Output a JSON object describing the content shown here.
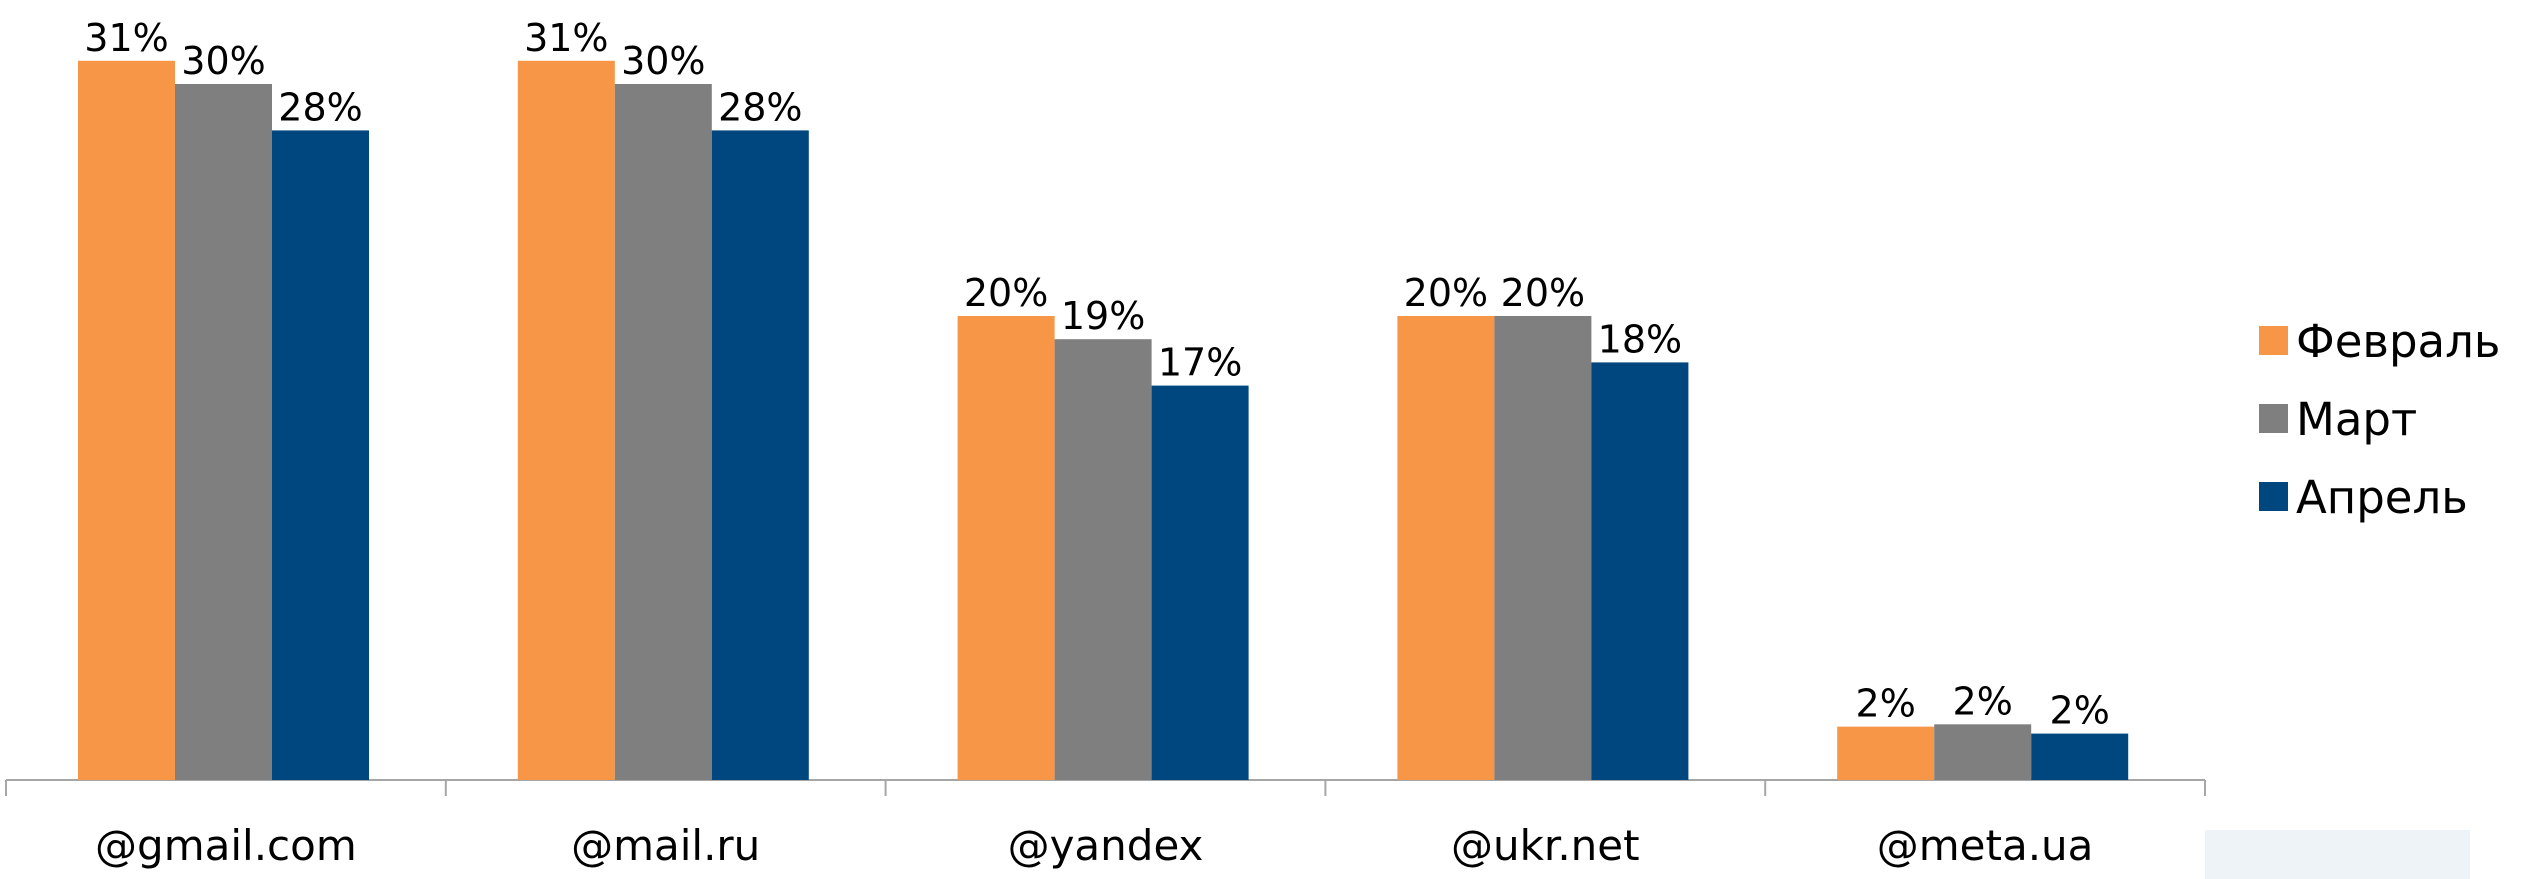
{
  "chart_data": {
    "type": "bar",
    "categories": [
      "@gmail.com",
      "@mail.ru",
      "@yandex",
      "@ukr.net",
      "@meta.ua"
    ],
    "series": [
      {
        "name": "Февраль",
        "color": "#f79646",
        "values": [
          31,
          31,
          20,
          20,
          2.3
        ],
        "value_labels": [
          "31%",
          "31%",
          "20%",
          "20%",
          "2%"
        ]
      },
      {
        "name": "Март",
        "color": "#7f7f7f",
        "values": [
          30,
          30,
          19,
          20,
          2.4
        ],
        "value_labels": [
          "30%",
          "30%",
          "19%",
          "20%",
          "2%"
        ]
      },
      {
        "name": "Апрель",
        "color": "#00467f",
        "values": [
          28,
          28,
          17,
          18,
          2.0
        ],
        "value_labels": [
          "28%",
          "28%",
          "17%",
          "18%",
          "2%"
        ]
      }
    ],
    "legend": "right"
  }
}
